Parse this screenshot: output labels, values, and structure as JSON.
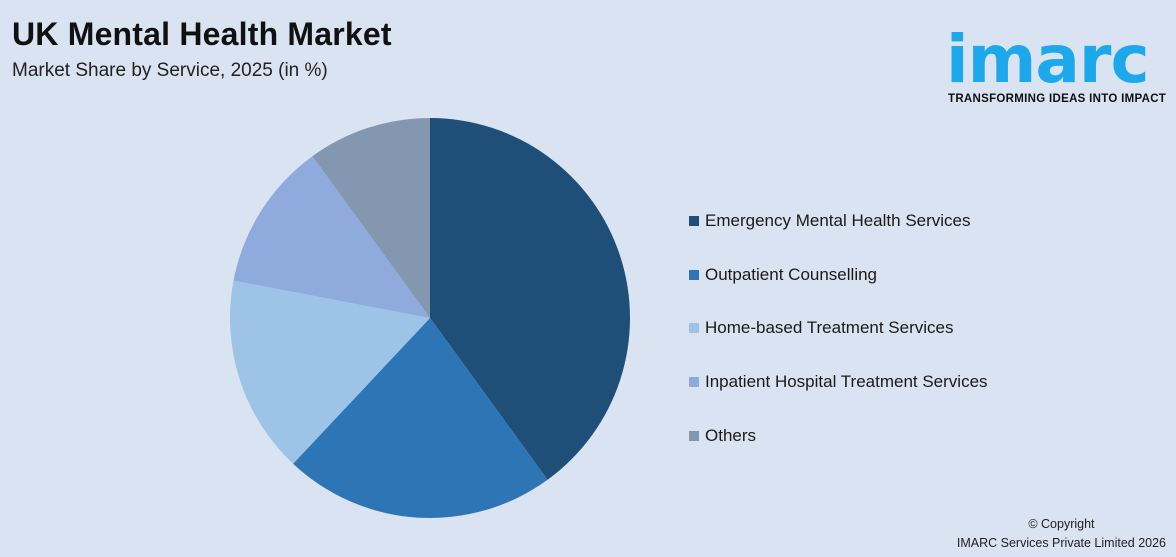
{
  "header": {
    "title": "UK Mental Health Market",
    "subtitle": "Market Share by Service, 2025 (in %)"
  },
  "logo": {
    "wordmark": "imarc",
    "tagline": "TRANSFORMING IDEAS INTO IMPACT",
    "color": "#1ea8ec"
  },
  "legend": {
    "items": [
      {
        "label": "Emergency Mental Health Services",
        "color": "#1f4e79"
      },
      {
        "label": "Outpatient Counselling",
        "color": "#2e75b6"
      },
      {
        "label": "Home-based Treatment Services",
        "color": "#9dc3e6"
      },
      {
        "label": "Inpatient Hospital Treatment Services",
        "color": "#8faadc"
      },
      {
        "label": "Others",
        "color": "#8497b0"
      }
    ]
  },
  "footer": {
    "copyright_line1": "© Copyright",
    "copyright_line2": "IMARC Services Private Limited 2026"
  },
  "chart_data": {
    "type": "pie",
    "title": "UK Mental Health Market",
    "subtitle": "Market Share by Service, 2025 (in %)",
    "categories": [
      "Emergency Mental Health Services",
      "Outpatient Counselling",
      "Home-based Treatment Services",
      "Inpatient Hospital Treatment Services",
      "Others"
    ],
    "values": [
      40,
      22,
      16,
      12,
      10
    ],
    "colors": [
      "#1f4e79",
      "#2e75b6",
      "#9dc3e6",
      "#8faadc",
      "#8497b0"
    ],
    "start_angle": "12 o'clock, clockwise",
    "legend_position": "right",
    "data_labels": false
  }
}
